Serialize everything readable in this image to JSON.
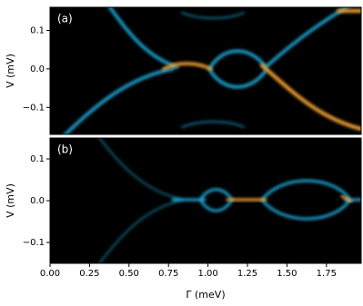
{
  "chart_data": [
    {
      "type": "heatmap",
      "label": "(a)",
      "ylabel": "V (mV)",
      "xlim": [
        0,
        1.97
      ],
      "ylim": [
        -0.17,
        0.16
      ],
      "yticks": [
        {
          "value": -0.1,
          "label": "−0.1"
        },
        {
          "value": 0,
          "label": "0.0"
        },
        0.1
      ]
    },
    {
      "type": "heatmap",
      "label": "(b)",
      "ylabel": "V (mV)",
      "xlabel": "Γ (meV)",
      "xlim": [
        0,
        1.97
      ],
      "ylim": [
        -0.15,
        0.15
      ],
      "yticks": [
        {
          "value": -0.1,
          "label": "−0.1"
        },
        {
          "value": 0,
          "label": "0.0"
        },
        0.1
      ],
      "xticks": [
        {
          "value": 0,
          "label": "0.00"
        },
        {
          "value": 0.25,
          "label": "0.25"
        },
        {
          "value": 0.5,
          "label": "0.50"
        },
        {
          "value": 0.75,
          "label": "0.75"
        },
        {
          "value": 1,
          "label": "1.00"
        },
        {
          "value": 1.25,
          "label": "1.25"
        },
        {
          "value": 1.5,
          "label": "1.50"
        },
        {
          "value": 1.75,
          "label": "1.75"
        }
      ]
    }
  ]
}
